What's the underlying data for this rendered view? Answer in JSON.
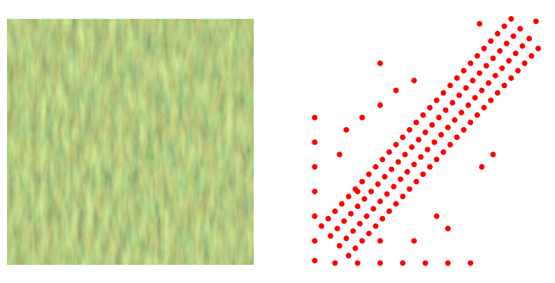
{
  "chart_data": {
    "type": "scatter",
    "color": "#ff0000",
    "xlim": [
      0,
      1
    ],
    "ylim": [
      0,
      1
    ],
    "x": [
      0.04,
      0.08,
      0.12,
      0.16,
      0.07,
      0.11,
      0.15,
      0.19,
      0.1,
      0.14,
      0.18,
      0.22,
      0.13,
      0.17,
      0.21,
      0.25,
      0.16,
      0.2,
      0.24,
      0.28,
      0.19,
      0.23,
      0.27,
      0.31,
      0.22,
      0.26,
      0.3,
      0.34,
      0.25,
      0.29,
      0.33,
      0.37,
      0.28,
      0.32,
      0.36,
      0.4,
      0.31,
      0.35,
      0.39,
      0.43,
      0.34,
      0.38,
      0.42,
      0.46,
      0.37,
      0.41,
      0.45,
      0.49,
      0.4,
      0.44,
      0.48,
      0.52,
      0.43,
      0.47,
      0.51,
      0.55,
      0.46,
      0.5,
      0.54,
      0.58,
      0.49,
      0.53,
      0.57,
      0.61,
      0.52,
      0.56,
      0.6,
      0.64,
      0.55,
      0.59,
      0.63,
      0.67,
      0.58,
      0.62,
      0.66,
      0.7,
      0.61,
      0.65,
      0.69,
      0.73,
      0.64,
      0.68,
      0.72,
      0.76,
      0.67,
      0.71,
      0.75,
      0.79,
      0.7,
      0.74,
      0.78,
      0.82,
      0.73,
      0.77,
      0.81,
      0.85,
      0.76,
      0.8,
      0.84,
      0.88,
      0.79,
      0.83,
      0.87,
      0.91,
      0.82,
      0.86,
      0.9,
      0.94,
      0.85,
      0.89,
      0.93,
      0.97,
      0.88,
      0.92,
      0.96,
      1.0,
      0.01,
      0.01,
      0.01,
      0.01,
      0.01,
      0.01,
      0.01,
      0.1,
      0.2,
      0.3,
      0.4,
      0.5,
      0.6,
      0.7,
      0.3,
      0.45,
      0.6,
      0.55,
      0.3,
      0.15,
      0.22,
      0.3,
      0.45,
      0.37,
      0.75,
      0.8,
      0.99,
      0.74,
      0.12,
      0.2
    ],
    "values": [
      0.16,
      0.12,
      0.08,
      0.04,
      0.19,
      0.15,
      0.11,
      0.07,
      0.22,
      0.18,
      0.14,
      0.1,
      0.25,
      0.21,
      0.17,
      0.13,
      0.28,
      0.24,
      0.2,
      0.16,
      0.31,
      0.27,
      0.23,
      0.19,
      0.34,
      0.3,
      0.26,
      0.22,
      0.37,
      0.33,
      0.29,
      0.25,
      0.4,
      0.36,
      0.32,
      0.28,
      0.43,
      0.39,
      0.35,
      0.31,
      0.46,
      0.42,
      0.38,
      0.34,
      0.49,
      0.45,
      0.41,
      0.37,
      0.52,
      0.48,
      0.44,
      0.4,
      0.55,
      0.51,
      0.47,
      0.43,
      0.58,
      0.54,
      0.5,
      0.46,
      0.61,
      0.57,
      0.53,
      0.49,
      0.64,
      0.6,
      0.56,
      0.52,
      0.67,
      0.63,
      0.59,
      0.55,
      0.7,
      0.66,
      0.62,
      0.58,
      0.73,
      0.69,
      0.65,
      0.61,
      0.76,
      0.72,
      0.68,
      0.64,
      0.79,
      0.75,
      0.71,
      0.67,
      0.82,
      0.78,
      0.74,
      0.7,
      0.85,
      0.81,
      0.77,
      0.73,
      0.88,
      0.84,
      0.8,
      0.76,
      0.91,
      0.87,
      0.83,
      0.79,
      0.94,
      0.9,
      0.86,
      0.82,
      0.97,
      0.93,
      0.89,
      0.85,
      1.0,
      0.96,
      0.92,
      0.88,
      0.6,
      0.5,
      0.4,
      0.3,
      0.2,
      0.1,
      0.02,
      0.01,
      0.01,
      0.01,
      0.01,
      0.01,
      0.01,
      0.01,
      0.1,
      0.1,
      0.15,
      0.2,
      0.65,
      0.55,
      0.6,
      0.82,
      0.75,
      0.71,
      0.4,
      0.45,
      0.99,
      0.98,
      0.45,
      0.3
    ]
  }
}
